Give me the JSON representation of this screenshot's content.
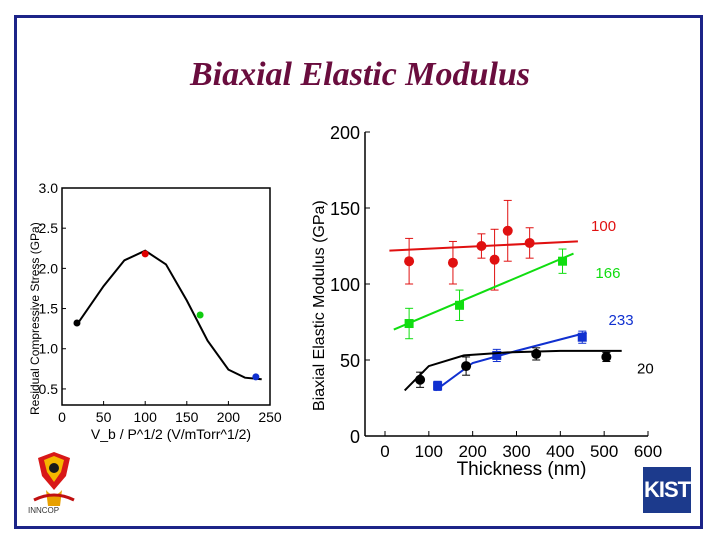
{
  "slide": {
    "title": "Biaxial Elastic Modulus",
    "logo_right_text": "KIST",
    "logo_left_caption": "INNCOP"
  },
  "chart_data": [
    {
      "type": "scatter",
      "title": "",
      "xlabel": "V_b / P^1/2 (V/mTorr^1/2)",
      "ylabel": "Residual Compressive Stress (GPa)",
      "xlim": [
        0,
        250
      ],
      "ylim": [
        0.5,
        3.0
      ],
      "x_ticks": [
        "0",
        "50",
        "100",
        "150",
        "200",
        "250"
      ],
      "y_ticks": [
        "0.5",
        "1.0",
        "1.5",
        "2.0",
        "2.5",
        "3.0"
      ],
      "grid": false,
      "points": [
        {
          "x": 18,
          "y": 1.32,
          "color": "#000000"
        },
        {
          "x": 100,
          "y": 2.18,
          "color": "#e00000"
        },
        {
          "x": 166,
          "y": 1.42,
          "color": "#10cc10"
        },
        {
          "x": 233,
          "y": 0.65,
          "color": "#1030d0"
        }
      ],
      "fit_curve": [
        [
          18,
          1.3
        ],
        [
          50,
          1.78
        ],
        [
          75,
          2.1
        ],
        [
          100,
          2.22
        ],
        [
          125,
          2.05
        ],
        [
          150,
          1.6
        ],
        [
          175,
          1.1
        ],
        [
          200,
          0.74
        ],
        [
          220,
          0.64
        ],
        [
          240,
          0.62
        ]
      ]
    },
    {
      "type": "scatter",
      "title": "",
      "xlabel": "Thickness (nm)",
      "ylabel": "Biaxial Elastic Modulus (GPa)",
      "xlim": [
        0,
        600
      ],
      "ylim": [
        0,
        200
      ],
      "x_ticks": [
        "0",
        "100",
        "200",
        "300",
        "400",
        "500",
        "600"
      ],
      "y_ticks": [
        "0",
        "50",
        "100",
        "150",
        "200"
      ],
      "grid": false,
      "series": [
        {
          "name": "100",
          "color": "#e01010",
          "marker": "circle",
          "points": [
            [
              55,
              115,
              15
            ],
            [
              155,
              114,
              14
            ],
            [
              220,
              125,
              8
            ],
            [
              250,
              116,
              20
            ],
            [
              280,
              135,
              20
            ],
            [
              330,
              127,
              10
            ]
          ],
          "fit": [
            [
              10,
              122
            ],
            [
              440,
              128
            ]
          ]
        },
        {
          "name": "166",
          "color": "#10dd10",
          "marker": "square",
          "points": [
            [
              55,
              74,
              10
            ],
            [
              170,
              86,
              10
            ],
            [
              405,
              115,
              8
            ]
          ],
          "fit": [
            [
              20,
              70
            ],
            [
              430,
              120
            ]
          ]
        },
        {
          "name": "233",
          "color": "#1030d0",
          "marker": "square",
          "points": [
            [
              120,
              33,
              3
            ],
            [
              255,
              53,
              4
            ],
            [
              450,
              65,
              4
            ]
          ],
          "fit": [
            [
              115,
              30
            ],
            [
              200,
              48
            ],
            [
              300,
              56
            ],
            [
              460,
              68
            ]
          ]
        },
        {
          "name": "20",
          "color": "#000000",
          "marker": "circle",
          "points": [
            [
              80,
              37,
              5
            ],
            [
              185,
              46,
              6
            ],
            [
              345,
              54,
              4
            ],
            [
              505,
              52,
              3
            ]
          ],
          "fit": [
            [
              45,
              30
            ],
            [
              100,
              46
            ],
            [
              180,
              53
            ],
            [
              280,
              55
            ],
            [
              400,
              56
            ],
            [
              540,
              56
            ]
          ]
        }
      ]
    }
  ]
}
